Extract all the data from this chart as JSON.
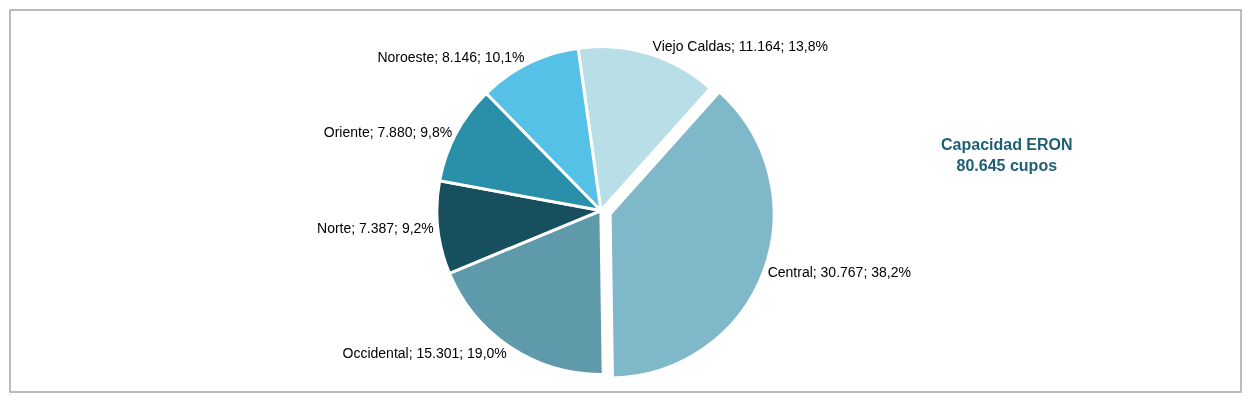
{
  "chart_data": {
    "type": "pie",
    "categories": [
      "Viejo Caldas",
      "Central",
      "Occidental",
      "Norte",
      "Oriente",
      "Noroeste"
    ],
    "values": [
      11164,
      30767,
      15301,
      7387,
      7880,
      8146
    ],
    "value_labels": [
      "11.164; 13,8%",
      "30.767; 38,2%",
      "15.301; 19,0%",
      "7.387; 9,2%",
      "7.880; 9,8%",
      "8.146; 10,1%"
    ],
    "colors": [
      "#b8dfe8",
      "#7fb9c9",
      "#5e9aaa",
      "#174f5e",
      "#2a8fa8",
      "#55c1e6"
    ],
    "annotations": [
      "Capacidad ERON\n80.645 cupos"
    ],
    "legend": false
  }
}
